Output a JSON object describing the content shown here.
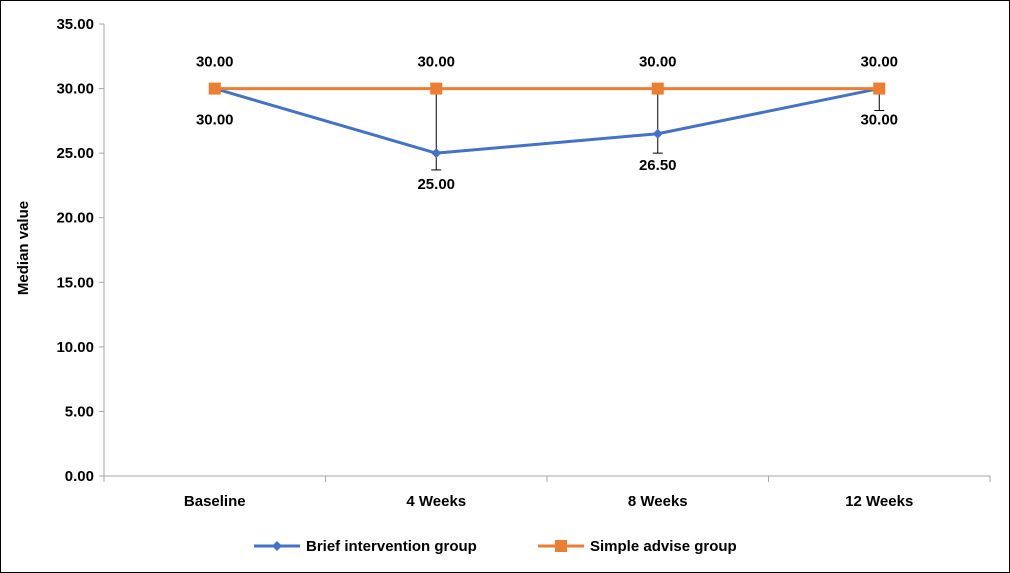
{
  "chart_data": {
    "type": "line",
    "title": "",
    "xlabel": "",
    "ylabel": "Median value",
    "categories": [
      "Baseline",
      "4 Weeks",
      "8 Weeks",
      "12 Weeks"
    ],
    "ylim": [
      0,
      35
    ],
    "yticks": [
      "0.00",
      "5.00",
      "10.00",
      "15.00",
      "20.00",
      "25.00",
      "30.00",
      "35.00"
    ],
    "grid": false,
    "legend_position": "bottom",
    "series": [
      {
        "name": "Brief intervention group",
        "values": [
          30.0,
          25.0,
          26.5,
          30.0
        ],
        "labels": [
          "30.00",
          "25.00",
          "26.50",
          "30.00"
        ],
        "error_lower": [
          30.0,
          23.7,
          25.0,
          28.3
        ],
        "color": "#4472C4",
        "marker": "diamond"
      },
      {
        "name": "Simple advise group",
        "values": [
          30.0,
          30.0,
          30.0,
          30.0
        ],
        "labels": [
          "30.00",
          "30.00",
          "30.00",
          "30.00"
        ],
        "color": "#ED7D31",
        "marker": "square"
      }
    ]
  }
}
